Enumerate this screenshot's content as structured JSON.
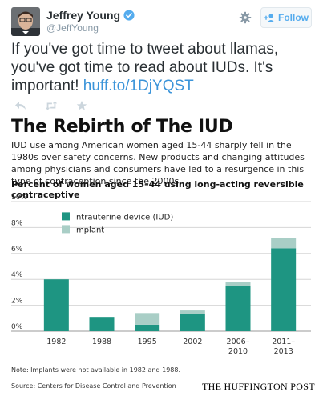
{
  "tweet": {
    "display_name": "Jeffrey Young",
    "handle": "@JeffYoung",
    "follow_label": "Follow",
    "text": "If you've got time to tweet about llamas, you've got time to read about IUDs. It's important!",
    "link": "huff.to/1DjYQST"
  },
  "infographic": {
    "title": "The Rebirth of The IUD",
    "description": "IUD use among American women aged 15-44 sharply fell in the 1980s over safety concerns. New products and changing attitudes among physicians and consumers have led to a resurgence in this type of contraception since the 2000s.",
    "chart_heading": "Percent of women aged 15–44 using long-acting reversible contraceptive",
    "note": "Note: Implants were not available in 1982 and 1988.",
    "source": "Source: Centers for Disease Control and Prevention",
    "brand": "THE HUFFINGTON POST"
  },
  "colors": {
    "iud": "#1e9582",
    "implant": "#a9cec6",
    "link": "#3b94d9",
    "follow": "#55acee"
  },
  "icons": [
    "verified-badge-icon",
    "gear-icon",
    "follow-person-icon",
    "reply-icon",
    "retweet-icon",
    "favorite-star-icon"
  ],
  "chart_data": {
    "type": "bar",
    "stacked": true,
    "categories": [
      "1982",
      "1988",
      "1995",
      "2002",
      "2006–2010",
      "2011–2013"
    ],
    "series": [
      {
        "name": "Intrauterine device (IUD)",
        "values": [
          4.0,
          1.1,
          0.5,
          1.3,
          3.5,
          6.4
        ]
      },
      {
        "name": "Implant",
        "values": [
          0,
          0,
          0.9,
          0.3,
          0.3,
          0.8
        ]
      }
    ],
    "ylim": [
      0,
      10
    ],
    "yticks": [
      "0%",
      "2%",
      "4%",
      "6%",
      "8%",
      "10%"
    ],
    "grid": true,
    "legend": "top-left"
  }
}
